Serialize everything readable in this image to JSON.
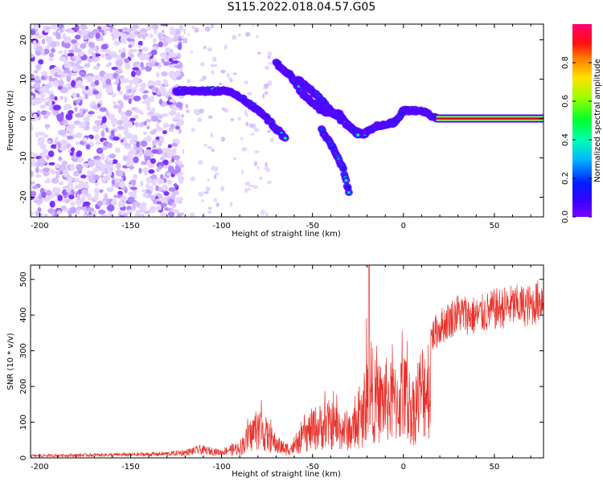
{
  "title": "S115.2022.018.04.57.G05",
  "colors": {
    "spectrogram_purple": "#7a1fff",
    "snr_line": "#e8302a",
    "ridge_red": "#e0001a"
  },
  "chart_data": [
    {
      "type": "heatmap",
      "xlabel": "Height of straight line (km)",
      "ylabel": "Frequency (Hz)",
      "xlim": [
        -205,
        77
      ],
      "ylim": [
        -25,
        24
      ],
      "xticks": [
        -200,
        -150,
        -100,
        -50,
        0,
        50
      ],
      "yticks": [
        -20,
        -10,
        0,
        10,
        20
      ],
      "colorbar": {
        "label": "Normalized spectral amplitude",
        "range": [
          0,
          1
        ],
        "ticks": [
          "0.0",
          "0.2",
          "0.4",
          "0.6",
          "0.8"
        ],
        "colormap": "rainbow (purple-blue-cyan-green-yellow-red-magenta)"
      },
      "ridges": [
        {
          "points": [
            [
              -125,
              7
            ],
            [
              -110,
              7
            ],
            [
              -95,
              7
            ],
            [
              -85,
              4
            ],
            [
              -75,
              0
            ],
            [
              -65,
              -5
            ]
          ]
        },
        {
          "points": [
            [
              -70,
              14
            ],
            [
              -62,
              11
            ],
            [
              -55,
              6
            ],
            [
              -45,
              2
            ],
            [
              -35,
              1
            ],
            [
              -28,
              -3
            ],
            [
              -22,
              -4
            ],
            [
              -15,
              -2
            ],
            [
              -5,
              -1
            ],
            [
              0,
              2
            ],
            [
              10,
              2
            ],
            [
              18,
              0
            ],
            [
              76,
              0
            ]
          ]
        },
        {
          "points": [
            [
              -58,
              10
            ],
            [
              -48,
              6
            ],
            [
              -40,
              2
            ],
            [
              -30,
              -2
            ],
            [
              -25,
              -4
            ]
          ]
        },
        {
          "points": [
            [
              -45,
              -3
            ],
            [
              -38,
              -8
            ],
            [
              -33,
              -13
            ],
            [
              -30,
              -19
            ]
          ]
        }
      ]
    },
    {
      "type": "line",
      "xlabel": "Height of straight line (km)",
      "ylabel": "SNR (10 * v/v)",
      "xlim": [
        -205,
        77
      ],
      "ylim": [
        0,
        540
      ],
      "xticks": [
        -200,
        -150,
        -100,
        -50,
        0,
        50
      ],
      "yticks": [
        0,
        100,
        200,
        300,
        400,
        500
      ],
      "series": [
        {
          "envelope": [
            [
              -205,
              8
            ],
            [
              -180,
              10
            ],
            [
              -150,
              12
            ],
            [
              -130,
              15
            ],
            [
              -120,
              20
            ],
            [
              -112,
              30
            ],
            [
              -105,
              25
            ],
            [
              -100,
              20
            ],
            [
              -95,
              35
            ],
            [
              -90,
              45
            ],
            [
              -85,
              90
            ],
            [
              -80,
              140
            ],
            [
              -75,
              100
            ],
            [
              -70,
              60
            ],
            [
              -65,
              40
            ],
            [
              -60,
              45
            ],
            [
              -55,
              90
            ],
            [
              -50,
              130
            ],
            [
              -45,
              140
            ],
            [
              -40,
              150
            ],
            [
              -35,
              130
            ],
            [
              -30,
              120
            ],
            [
              -25,
              140
            ],
            [
              -22,
              200
            ],
            [
              -19,
              380
            ],
            [
              -17,
              280
            ],
            [
              -15,
              240
            ],
            [
              -10,
              260
            ],
            [
              -5,
              240
            ],
            [
              0,
              280
            ],
            [
              5,
              210
            ],
            [
              10,
              300
            ],
            [
              15,
              340
            ],
            [
              20,
              370
            ],
            [
              25,
              390
            ],
            [
              30,
              410
            ],
            [
              40,
              400
            ],
            [
              50,
              420
            ],
            [
              60,
              430
            ],
            [
              70,
              430
            ],
            [
              76,
              450
            ]
          ]
        }
      ]
    }
  ]
}
